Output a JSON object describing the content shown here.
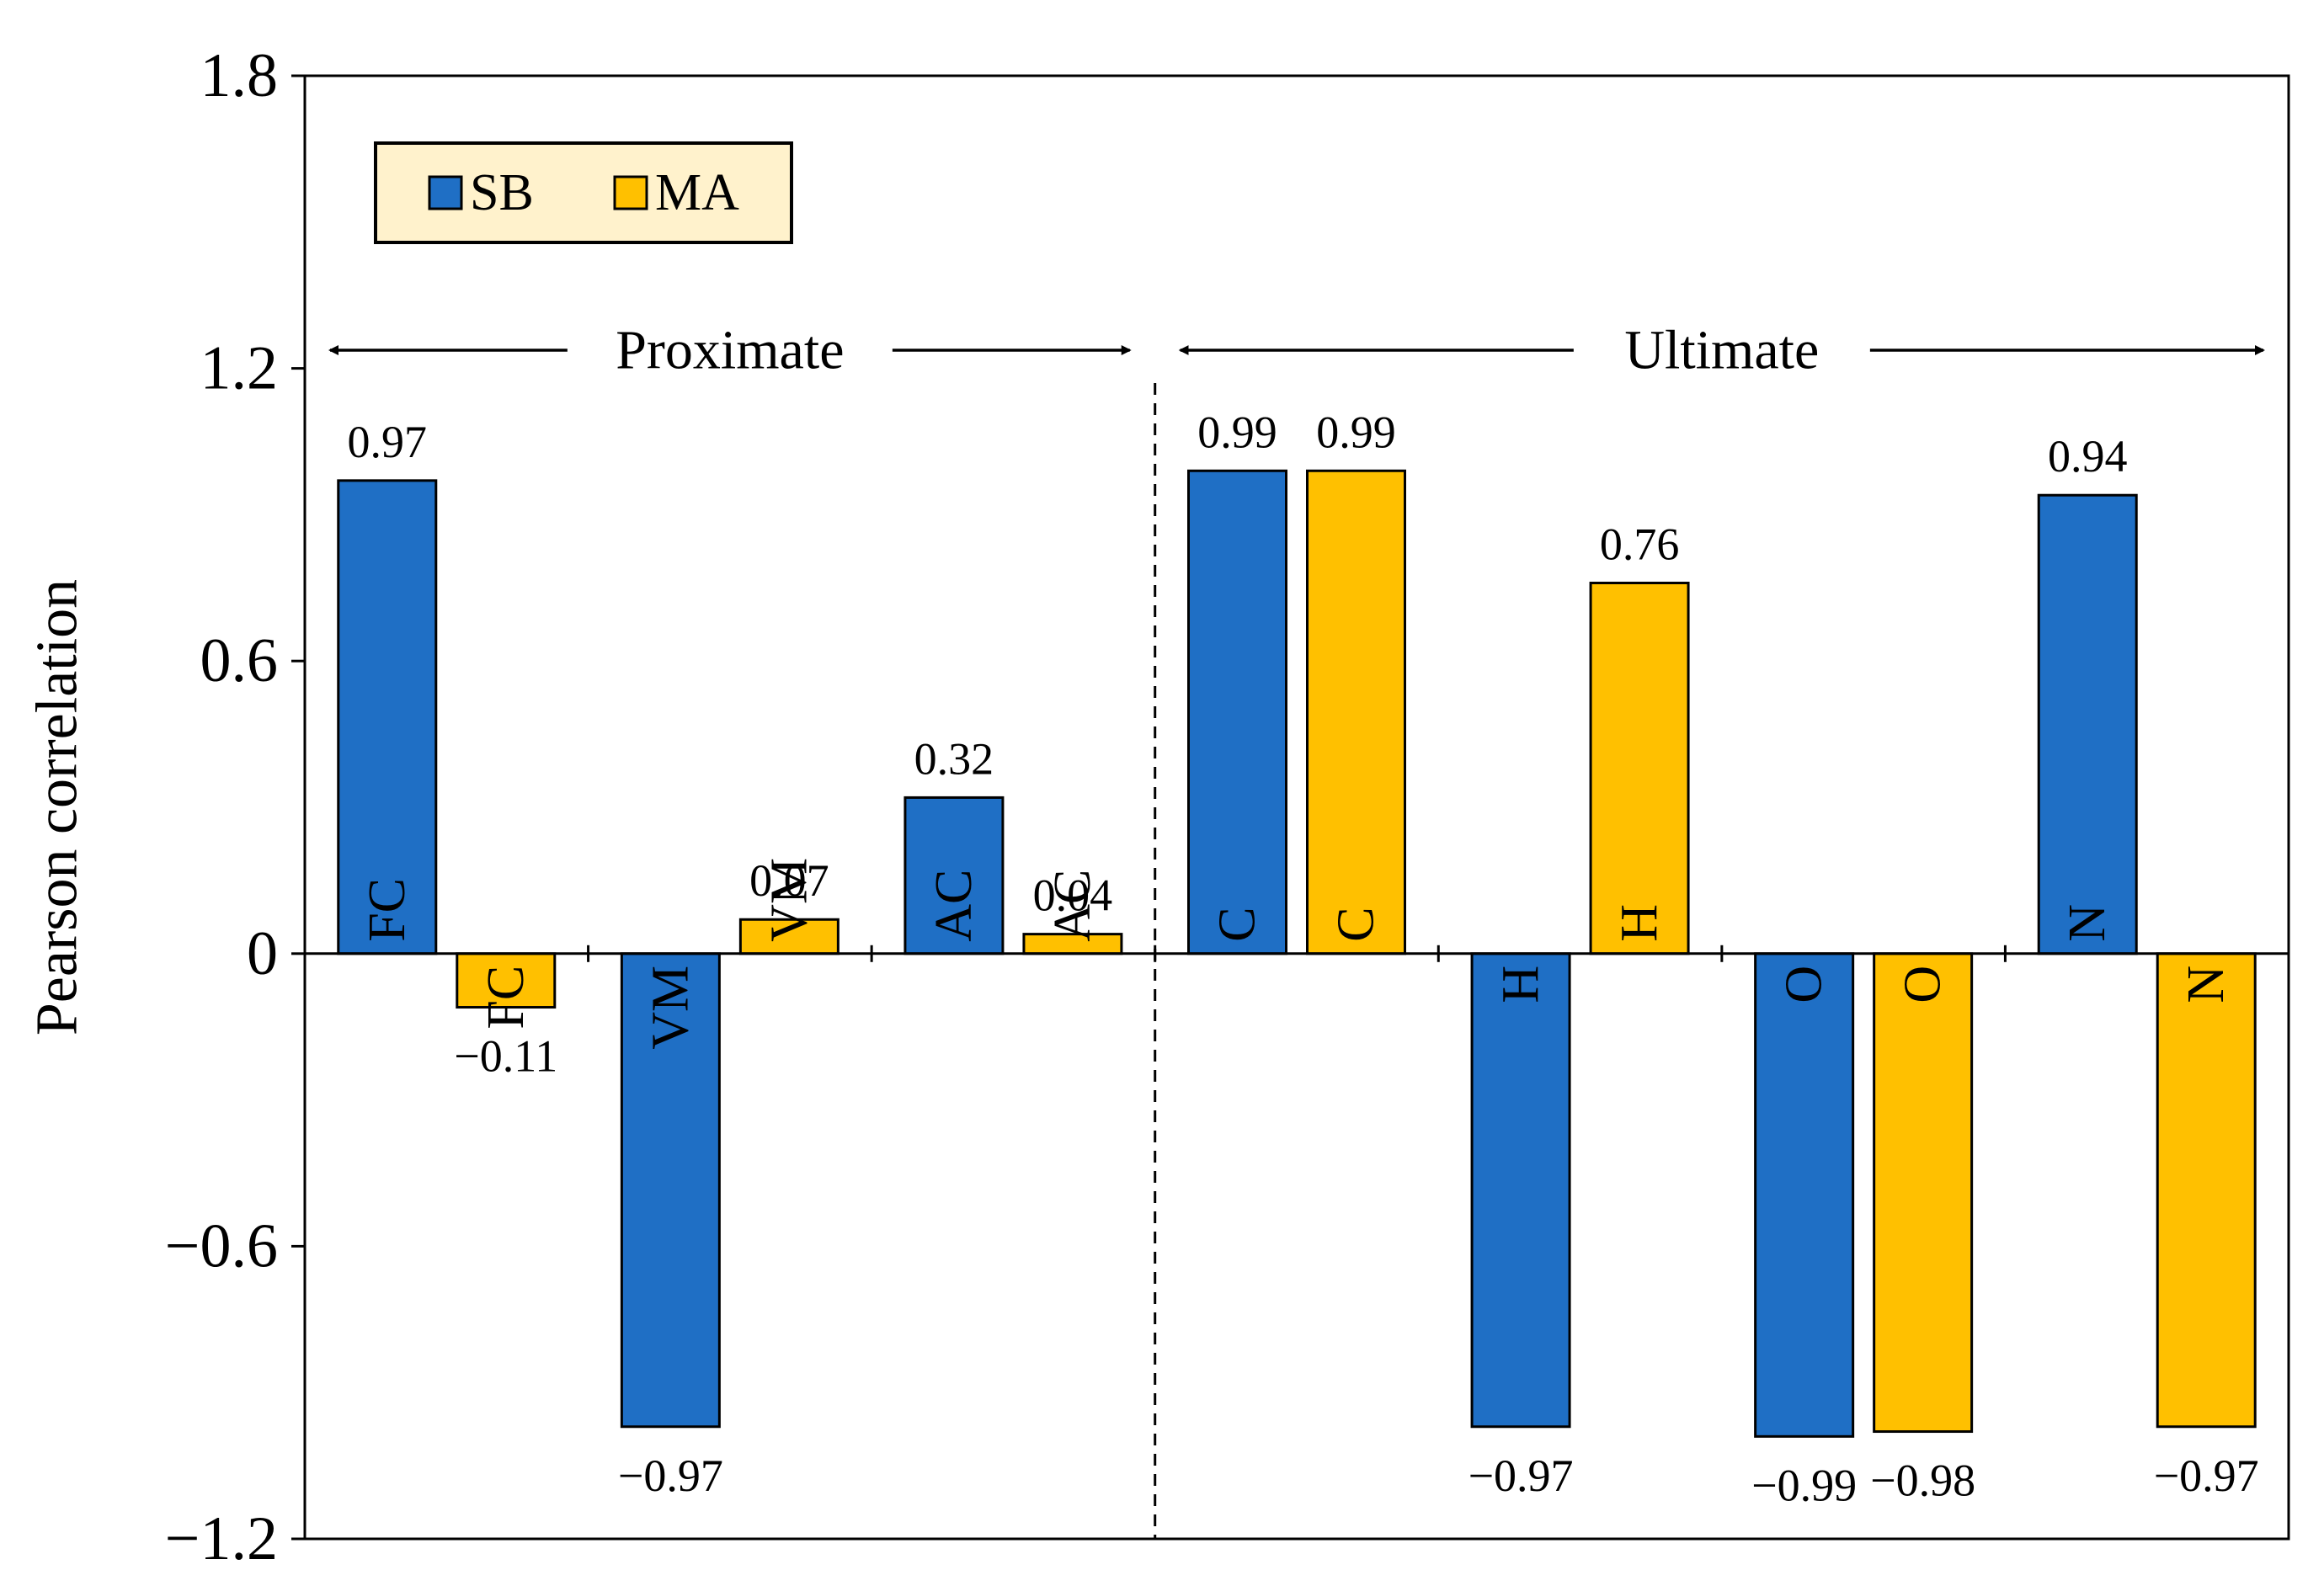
{
  "chart_data": {
    "type": "bar",
    "title": "",
    "xlabel": "",
    "ylabel": "Pearson correlation",
    "ylim": [
      -1.2,
      1.8
    ],
    "yticks": [
      "1.8",
      "1.2",
      "0.6",
      "0",
      "−0.6",
      "−1.2"
    ],
    "ytick_values": [
      1.8,
      1.2,
      0.6,
      0,
      -0.6,
      -1.2
    ],
    "grid": false,
    "legend_position": "top-left",
    "colors": {
      "SB": "#1f6fc5",
      "MA": "#ffc000",
      "legend_bg": "#fff2cc"
    },
    "groups": [
      {
        "name": "Proximate",
        "categories": [
          "FC",
          "VM",
          "AC"
        ]
      },
      {
        "name": "Ultimate",
        "categories": [
          "C",
          "H",
          "O",
          "N"
        ]
      }
    ],
    "categories": [
      "FC",
      "VM",
      "AC",
      "C",
      "H",
      "O",
      "N"
    ],
    "series": [
      {
        "name": "SB",
        "values": [
          0.97,
          -0.97,
          0.32,
          0.99,
          -0.97,
          -0.99,
          0.94
        ],
        "value_labels": [
          "0.97",
          "−0.97",
          "0.32",
          "0.99",
          "−0.97",
          "−0.99",
          "0.94"
        ],
        "bar_labels": [
          "FC",
          "VM",
          "AC",
          "C",
          "H",
          "O",
          "N"
        ]
      },
      {
        "name": "MA",
        "values": [
          -0.11,
          0.07,
          0.04,
          0.99,
          0.76,
          -0.98,
          -0.97
        ],
        "value_labels": [
          "−0.11",
          "0.07",
          "0.04",
          "0.99",
          "0.76",
          "−0.98",
          "−0.97"
        ],
        "bar_labels": [
          "FC",
          "VM",
          "AC",
          "C",
          "H",
          "O",
          "N"
        ]
      }
    ]
  }
}
